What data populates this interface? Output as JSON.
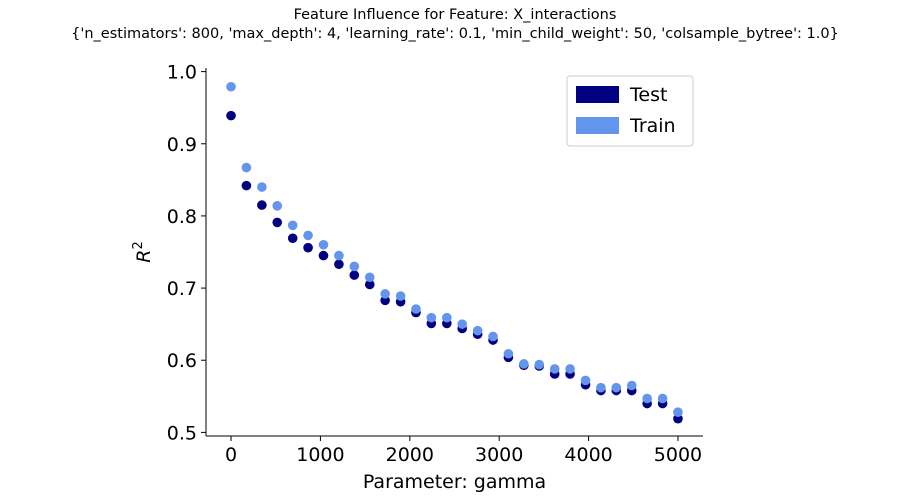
{
  "chart_data": {
    "type": "scatter",
    "title": "Feature Influence for Feature: X_interactions",
    "subtitle": "{'n_estimators': 800, 'max_depth': 4, 'learning_rate': 0.1, 'min_child_weight': 50, 'colsample_bytree': 1.0}",
    "xlabel": "Parameter: gamma",
    "ylabel_base": "R",
    "ylabel_sup": "2",
    "xlim": [
      -280,
      5280
    ],
    "ylim": [
      0.495,
      1.005
    ],
    "xticks": [
      0,
      1000,
      2000,
      3000,
      4000,
      5000
    ],
    "xtick_labels": [
      "0",
      "1000",
      "2000",
      "3000",
      "4000",
      "5000"
    ],
    "yticks": [
      0.5,
      0.6,
      0.7,
      0.8,
      0.9,
      1.0
    ],
    "ytick_labels": [
      "0.5",
      "0.6",
      "0.7",
      "0.8",
      "0.9",
      "1.0"
    ],
    "grid": false,
    "legend_position": "top-right",
    "x": [
      0,
      172,
      345,
      517,
      690,
      862,
      1034,
      1207,
      1379,
      1552,
      1724,
      1897,
      2069,
      2241,
      2414,
      2586,
      2759,
      2931,
      3103,
      3276,
      3448,
      3621,
      3793,
      3966,
      4138,
      4310,
      4483,
      4655,
      4828,
      5000
    ],
    "series": [
      {
        "name": "Test",
        "color": "#000080",
        "values": [
          0.939,
          0.842,
          0.815,
          0.791,
          0.769,
          0.756,
          0.745,
          0.733,
          0.718,
          0.705,
          0.683,
          0.681,
          0.666,
          0.651,
          0.651,
          0.644,
          0.636,
          0.628,
          0.604,
          0.593,
          0.592,
          0.581,
          0.581,
          0.566,
          0.558,
          0.558,
          0.558,
          0.54,
          0.54,
          0.519
        ]
      },
      {
        "name": "Train",
        "color": "#6495ED",
        "values": [
          0.979,
          0.867,
          0.84,
          0.814,
          0.787,
          0.773,
          0.76,
          0.745,
          0.73,
          0.715,
          0.692,
          0.689,
          0.671,
          0.659,
          0.659,
          0.65,
          0.641,
          0.633,
          0.609,
          0.595,
          0.594,
          0.588,
          0.588,
          0.572,
          0.562,
          0.562,
          0.565,
          0.547,
          0.547,
          0.528
        ]
      }
    ]
  }
}
